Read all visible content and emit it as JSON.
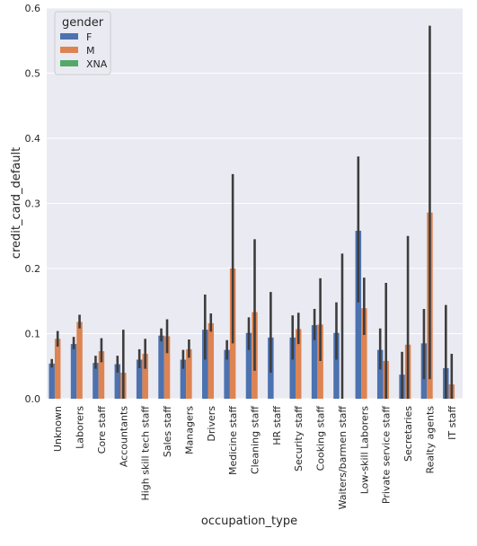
{
  "chart_data": {
    "type": "bar",
    "xlabel": "occupation_type",
    "ylabel": "credit_card_default",
    "ylim": [
      0,
      0.6
    ],
    "yticks": [
      "0.0",
      "0.1",
      "0.2",
      "0.3",
      "0.4",
      "0.5",
      "0.6"
    ],
    "grid": true,
    "legend": {
      "title": "gender",
      "placement": "top-left"
    },
    "categories": [
      "Unknown",
      "Laborers",
      "Core staff",
      "Accountants",
      "High skill tech staff",
      "Sales staff",
      "Managers",
      "Drivers",
      "Medicine staff",
      "Cleaning staff",
      "HR staff",
      "Security staff",
      "Cooking staff",
      "Waiters/barmen staff",
      "Low-skill Laborers",
      "Private service staff",
      "Secretaries",
      "Realty agents",
      "IT staff"
    ],
    "series": [
      {
        "name": "F",
        "color": "#4c72b0",
        "values": [
          0.054,
          0.084,
          0.055,
          0.053,
          0.06,
          0.097,
          0.06,
          0.106,
          0.075,
          0.101,
          0.094,
          0.094,
          0.113,
          0.101,
          0.258,
          0.075,
          0.037,
          0.085,
          0.047
        ],
        "ci_low": [
          0.048,
          0.076,
          0.046,
          0.04,
          0.047,
          0.088,
          0.046,
          0.06,
          0.06,
          0.075,
          0.04,
          0.06,
          0.09,
          0.06,
          0.148,
          0.045,
          0.0,
          0.03,
          0.0
        ],
        "ci_high": [
          0.061,
          0.095,
          0.066,
          0.066,
          0.076,
          0.108,
          0.075,
          0.16,
          0.09,
          0.125,
          0.164,
          0.128,
          0.138,
          0.148,
          0.372,
          0.108,
          0.072,
          0.138,
          0.144
        ]
      },
      {
        "name": "M",
        "color": "#dd8452",
        "values": [
          0.092,
          0.118,
          0.073,
          0.04,
          0.069,
          0.096,
          0.076,
          0.116,
          0.2,
          0.133,
          null,
          0.107,
          0.114,
          0.0,
          0.139,
          0.058,
          0.083,
          0.286,
          0.022
        ],
        "ci_low": [
          0.08,
          0.108,
          0.056,
          0.0,
          0.046,
          0.07,
          0.063,
          0.103,
          0.085,
          0.043,
          null,
          0.084,
          0.058,
          0.0,
          0.098,
          0.0,
          0.0,
          0.03,
          0.0
        ],
        "ci_high": [
          0.104,
          0.129,
          0.093,
          0.106,
          0.092,
          0.122,
          0.091,
          0.131,
          0.345,
          0.245,
          null,
          0.132,
          0.185,
          0.223,
          0.186,
          0.178,
          0.25,
          0.573,
          0.069
        ]
      },
      {
        "name": "XNA",
        "color": "#55a868",
        "values": [
          null,
          null,
          null,
          null,
          null,
          null,
          null,
          null,
          null,
          null,
          null,
          null,
          null,
          null,
          null,
          null,
          null,
          null,
          null
        ],
        "ci_low": [
          null,
          null,
          null,
          null,
          null,
          null,
          null,
          null,
          null,
          null,
          null,
          null,
          null,
          null,
          null,
          null,
          null,
          null,
          null
        ],
        "ci_high": [
          null,
          null,
          null,
          null,
          null,
          null,
          null,
          null,
          null,
          null,
          null,
          null,
          null,
          null,
          null,
          null,
          null,
          null,
          null
        ]
      }
    ]
  }
}
